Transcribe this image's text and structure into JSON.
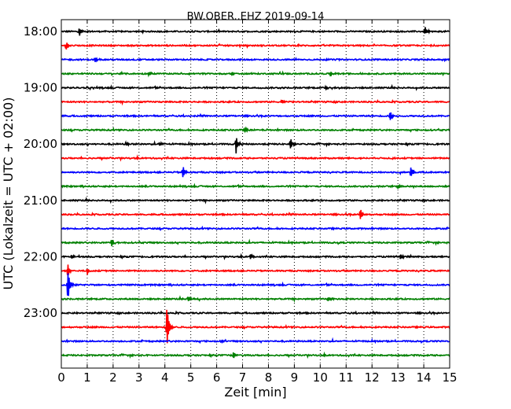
{
  "chart_data": {
    "type": "line",
    "title": "BW.OBER..EHZ 2019-09-14",
    "xlabel": "Zeit  [min]",
    "ylabel": "UTC (Lokalzeit = UTC + 02:00)",
    "xlim": [
      0,
      15
    ],
    "x_ticks": [
      "0",
      "1",
      "2",
      "3",
      "4",
      "5",
      "6",
      "7",
      "8",
      "9",
      "10",
      "11",
      "12",
      "13",
      "14",
      "15"
    ],
    "y_ticks": [
      {
        "label": "18:00",
        "trace_index": 0
      },
      {
        "label": "19:00",
        "trace_index": 4
      },
      {
        "label": "20:00",
        "trace_index": 8
      },
      {
        "label": "21:00",
        "trace_index": 12
      },
      {
        "label": "22:00",
        "trace_index": 16
      },
      {
        "label": "23:00",
        "trace_index": 20
      }
    ],
    "trace_interval_min": 15,
    "grid": {
      "vertical_dotted": true
    },
    "colors": [
      "#000000",
      "#ff0000",
      "#0000ff",
      "#008000"
    ],
    "traces": [
      {
        "start": "18:00",
        "color": "#000000",
        "events": [
          {
            "t": 0.7,
            "amp": 0.35
          },
          {
            "t": 14.05,
            "amp": 0.4
          }
        ]
      },
      {
        "start": "18:15",
        "color": "#ff0000",
        "events": [
          {
            "t": 0.2,
            "amp": 0.35
          }
        ]
      },
      {
        "start": "18:30",
        "color": "#0000ff",
        "events": [
          {
            "t": 1.3,
            "amp": 0.25
          }
        ]
      },
      {
        "start": "18:45",
        "color": "#008000",
        "events": [
          {
            "t": 3.4,
            "amp": 0.2
          },
          {
            "t": 6.6,
            "amp": 0.15
          },
          {
            "t": 10.4,
            "amp": 0.2
          }
        ]
      },
      {
        "start": "19:00",
        "color": "#000000",
        "events": [
          {
            "t": 10.2,
            "amp": 0.15
          }
        ]
      },
      {
        "start": "19:15",
        "color": "#ff0000",
        "events": [
          {
            "t": 8.5,
            "amp": 0.15
          }
        ]
      },
      {
        "start": "19:30",
        "color": "#0000ff",
        "events": [
          {
            "t": 12.7,
            "amp": 0.4
          }
        ]
      },
      {
        "start": "19:45",
        "color": "#008000",
        "events": [
          {
            "t": 7.1,
            "amp": 0.15
          }
        ]
      },
      {
        "start": "20:00",
        "color": "#000000",
        "events": [
          {
            "t": 2.5,
            "amp": 0.2
          },
          {
            "t": 3.8,
            "amp": 0.2
          },
          {
            "t": 6.75,
            "amp": 0.75
          },
          {
            "t": 8.85,
            "amp": 0.45
          }
        ]
      },
      {
        "start": "20:15",
        "color": "#ff0000",
        "events": []
      },
      {
        "start": "20:30",
        "color": "#0000ff",
        "events": [
          {
            "t": 4.7,
            "amp": 0.5
          },
          {
            "t": 13.5,
            "amp": 0.55
          }
        ]
      },
      {
        "start": "20:45",
        "color": "#008000",
        "events": [
          {
            "t": 13.0,
            "amp": 0.2
          }
        ]
      },
      {
        "start": "21:00",
        "color": "#000000",
        "events": []
      },
      {
        "start": "21:15",
        "color": "#ff0000",
        "events": [
          {
            "t": 11.55,
            "amp": 0.45
          }
        ]
      },
      {
        "start": "21:30",
        "color": "#0000ff",
        "events": []
      },
      {
        "start": "21:45",
        "color": "#008000",
        "events": [
          {
            "t": 1.95,
            "amp": 0.35
          }
        ]
      },
      {
        "start": "22:00",
        "color": "#000000",
        "events": [
          {
            "t": 0.4,
            "amp": 0.2
          },
          {
            "t": 7.3,
            "amp": 0.25
          },
          {
            "t": 13.1,
            "amp": 0.25
          }
        ]
      },
      {
        "start": "22:15",
        "color": "#ff0000",
        "events": [
          {
            "t": 0.25,
            "amp": 0.6
          },
          {
            "t": 1.0,
            "amp": 0.3
          }
        ]
      },
      {
        "start": "22:30",
        "color": "#0000ff",
        "events": [
          {
            "t": 0.25,
            "amp": 1.5
          }
        ]
      },
      {
        "start": "22:45",
        "color": "#008000",
        "events": [
          {
            "t": 4.9,
            "amp": 0.2
          },
          {
            "t": 10.3,
            "amp": 0.2
          }
        ]
      },
      {
        "start": "23:00",
        "color": "#000000",
        "events": []
      },
      {
        "start": "23:15",
        "color": "#ff0000",
        "events": [
          {
            "t": 4.08,
            "amp": 2.0
          }
        ]
      },
      {
        "start": "23:30",
        "color": "#0000ff",
        "events": [
          {
            "t": 6.2,
            "amp": 0.15
          }
        ]
      },
      {
        "start": "23:45",
        "color": "#008000",
        "events": [
          {
            "t": 6.65,
            "amp": 0.3
          }
        ]
      }
    ]
  }
}
